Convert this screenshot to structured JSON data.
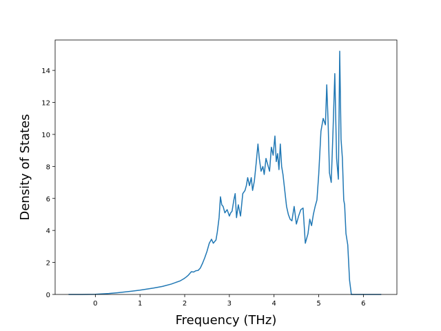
{
  "chart_data": {
    "type": "line",
    "title": "",
    "xlabel": "Frequency (THz)",
    "ylabel": "Density of States",
    "xlim": [
      -0.9,
      6.75
    ],
    "ylim": [
      0,
      15.9
    ],
    "xticks": [
      0,
      1,
      2,
      3,
      4,
      5,
      6
    ],
    "yticks": [
      0,
      2,
      4,
      6,
      8,
      10,
      12,
      14
    ],
    "grid": false,
    "legend": "none",
    "series": [
      {
        "color": "#1f77b4",
        "x": [
          -0.6,
          -0.3,
          0.0,
          0.3,
          0.5,
          0.8,
          1.0,
          1.3,
          1.5,
          1.7,
          1.9,
          1.98,
          2.03,
          2.08,
          2.15,
          2.2,
          2.25,
          2.3,
          2.35,
          2.4,
          2.45,
          2.5,
          2.55,
          2.6,
          2.64,
          2.67,
          2.7,
          2.73,
          2.77,
          2.8,
          2.83,
          2.86,
          2.9,
          2.95,
          3.0,
          3.03,
          3.06,
          3.1,
          3.13,
          3.16,
          3.2,
          3.25,
          3.3,
          3.35,
          3.38,
          3.41,
          3.45,
          3.49,
          3.52,
          3.56,
          3.6,
          3.64,
          3.67,
          3.71,
          3.75,
          3.78,
          3.82,
          3.86,
          3.9,
          3.94,
          3.98,
          4.02,
          4.05,
          4.08,
          4.11,
          4.14,
          4.17,
          4.2,
          4.24,
          4.28,
          4.32,
          4.36,
          4.4,
          4.45,
          4.5,
          4.55,
          4.6,
          4.65,
          4.7,
          4.76,
          4.8,
          4.84,
          4.88,
          4.92,
          4.96,
          5.0,
          5.05,
          5.1,
          5.15,
          5.18,
          5.21,
          5.24,
          5.28,
          5.32,
          5.36,
          5.4,
          5.44,
          5.47,
          5.5,
          5.53,
          5.56,
          5.58,
          5.61,
          5.65,
          5.69,
          5.73,
          5.76,
          5.79,
          5.82,
          5.85,
          5.9,
          6.0,
          6.2,
          6.4
        ],
        "y": [
          0,
          0,
          0.01,
          0.06,
          0.11,
          0.2,
          0.27,
          0.4,
          0.5,
          0.65,
          0.85,
          0.98,
          1.08,
          1.2,
          1.42,
          1.4,
          1.48,
          1.5,
          1.65,
          1.95,
          2.3,
          2.7,
          3.2,
          3.45,
          3.2,
          3.3,
          3.4,
          3.9,
          4.8,
          6.1,
          5.6,
          5.5,
          5.1,
          5.3,
          4.9,
          5.1,
          5.2,
          5.9,
          6.3,
          4.8,
          5.6,
          4.9,
          6.3,
          6.5,
          6.8,
          7.3,
          6.8,
          7.3,
          6.5,
          7.1,
          8.2,
          9.4,
          8.5,
          7.7,
          8.0,
          7.5,
          8.5,
          8.1,
          7.7,
          9.2,
          8.7,
          9.9,
          8.3,
          8.8,
          7.8,
          9.4,
          8.0,
          7.5,
          6.5,
          5.5,
          5.0,
          4.7,
          4.6,
          5.5,
          4.4,
          4.9,
          5.3,
          5.4,
          3.2,
          3.8,
          4.7,
          4.3,
          5.0,
          5.5,
          5.9,
          7.5,
          10.2,
          11.0,
          10.6,
          13.1,
          10.8,
          7.6,
          7.0,
          10.2,
          13.8,
          8.5,
          7.2,
          15.2,
          9.7,
          8.5,
          5.9,
          5.6,
          3.8,
          3.1,
          0.9,
          0,
          0,
          0,
          0,
          0,
          0,
          0,
          0,
          0
        ]
      }
    ]
  }
}
